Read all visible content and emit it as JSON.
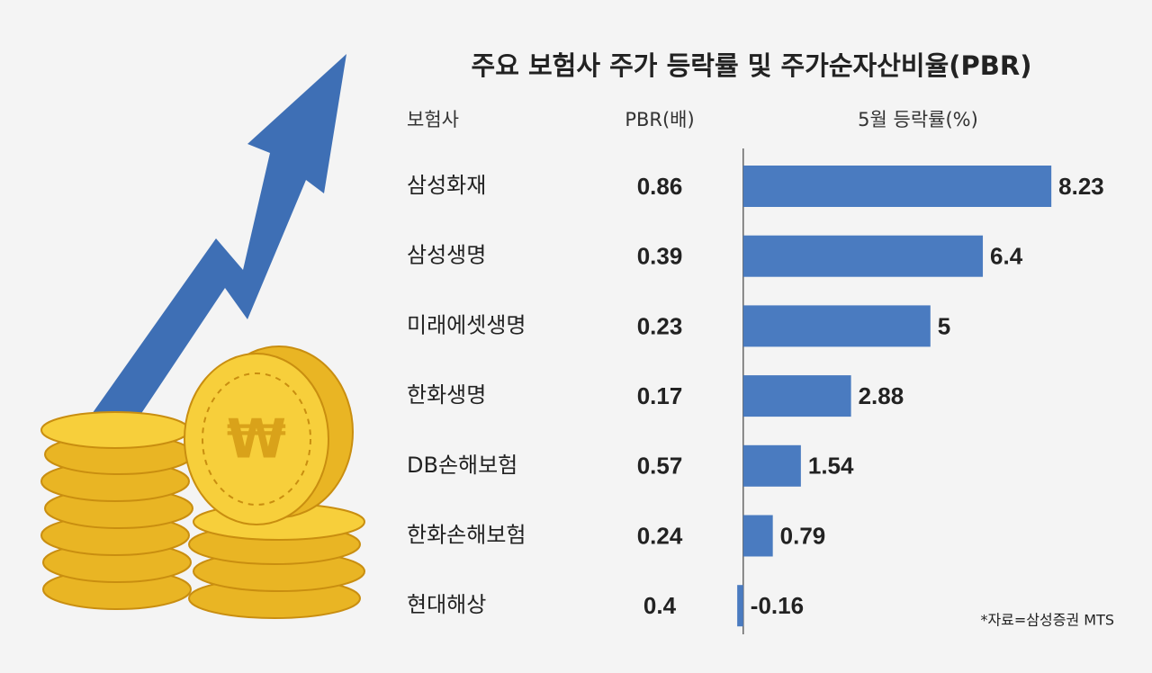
{
  "chart_data": {
    "type": "bar",
    "orientation": "horizontal",
    "title": "주요 보험사 주가 등락률 및 주가순자산비율(PBR)",
    "column_headers": [
      "보험사",
      "PBR(배)",
      "5월 등락률(%)"
    ],
    "categories": [
      "삼성화재",
      "삼성생명",
      "미래에셋생명",
      "한화생명",
      "DB손해보험",
      "한화손해보험",
      "현대해상"
    ],
    "pbr": [
      0.86,
      0.39,
      0.23,
      0.17,
      0.57,
      0.24,
      0.4
    ],
    "values": [
      8.23,
      6.4,
      5,
      2.88,
      1.54,
      0.79,
      -0.16
    ],
    "color": "#4a7bc0",
    "xlim": [
      -0.5,
      9.5
    ],
    "source": "*자료=삼성증권 MTS"
  }
}
